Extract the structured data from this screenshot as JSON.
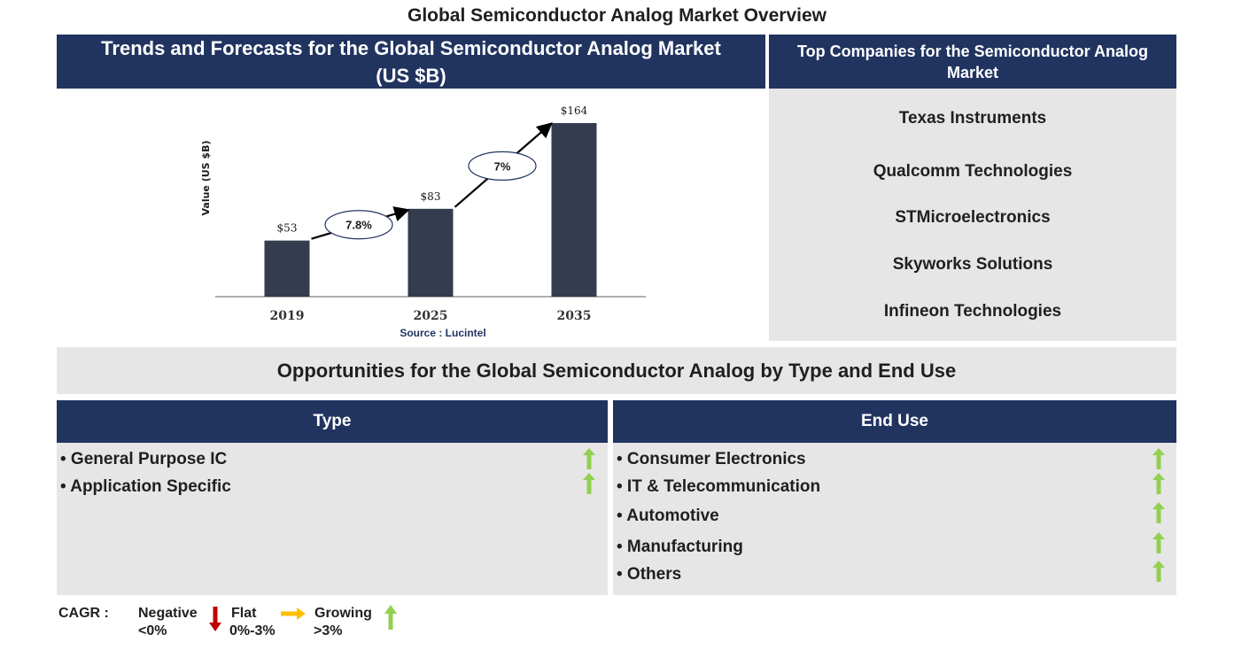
{
  "title": "Global Semiconductor Analog Market Overview",
  "trend_panel": {
    "header": "Trends and Forecasts for the Global Semiconductor Analog Market (US $B)"
  },
  "chart_data": {
    "type": "bar",
    "categories": [
      "2019",
      "2025",
      "2035"
    ],
    "values": [
      53,
      83,
      164
    ],
    "value_labels": [
      "$53",
      "$83",
      "$164"
    ],
    "ylabel": "Value (US $B)",
    "source": "Source : Lucintel",
    "cagr": [
      {
        "from": "2019",
        "to": "2025",
        "label": "7.8%"
      },
      {
        "from": "2025",
        "to": "2035",
        "label": "7%"
      }
    ],
    "grid": false,
    "bar_color": "#333d4f"
  },
  "companies": {
    "header": "Top Companies for the Semiconductor Analog Market",
    "items": [
      "Texas Instruments",
      "Qualcomm Technologies",
      "STMicroelectronics",
      "Skyworks Solutions",
      "Infineon Technologies"
    ]
  },
  "opportunities": {
    "title": "Opportunities for the Global Semiconductor Analog by Type and End Use",
    "type": {
      "header": "Type",
      "items": [
        {
          "label": "• General Purpose IC",
          "trend": "growing"
        },
        {
          "label": "• Application Specific",
          "trend": "growing"
        }
      ]
    },
    "end_use": {
      "header": "End Use",
      "items": [
        {
          "label": "• Consumer Electronics",
          "trend": "growing"
        },
        {
          "label": "• IT & Telecommunication",
          "trend": "growing"
        },
        {
          "label": "• Automotive",
          "trend": "growing"
        },
        {
          "label": "• Manufacturing",
          "trend": "growing"
        },
        {
          "label": "• Others",
          "trend": "growing"
        }
      ]
    }
  },
  "legend": {
    "cagr_label": "CAGR  :",
    "negative": {
      "label": "Negative",
      "range": "<0%",
      "color": "#c00000",
      "icon": "down-arrow-icon"
    },
    "flat": {
      "label": "Flat",
      "range": "0%-3%",
      "color": "#ffc000",
      "icon": "right-arrow-icon"
    },
    "growing": {
      "label": "Growing",
      "range": ">3%",
      "color": "#92d050",
      "icon": "up-arrow-icon"
    }
  },
  "colors": {
    "navy": "#213460",
    "panel_gray": "#e6e6e6",
    "growth_green": "#92d050"
  }
}
